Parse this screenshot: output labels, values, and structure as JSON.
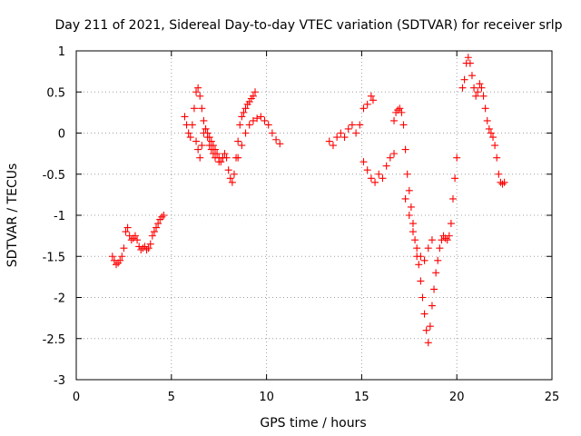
{
  "chart_data": {
    "type": "scatter",
    "title": "Day 211 of 2021, Sidereal Day-to-day VTEC variation (SDTVAR) for receiver srlp",
    "xlabel": "GPS time / hours",
    "ylabel": "SDTVAR / TECUs",
    "xlim": [
      0,
      25
    ],
    "ylim": [
      -3,
      1
    ],
    "xticks": [
      0,
      5,
      10,
      15,
      20,
      25
    ],
    "xtick_labels": [
      "0",
      "5",
      "10",
      "15",
      "20",
      "25"
    ],
    "yticks": [
      1,
      0.5,
      0,
      -0.5,
      -1,
      -1.5,
      -2,
      -2.5,
      -3
    ],
    "ytick_labels": [
      "1",
      "0.5",
      "0",
      "-0.5",
      "-1",
      "-1.5",
      "-2",
      "-2.5",
      "-3"
    ],
    "grid": true,
    "marker": "plus",
    "color": "#ff0000",
    "series": [
      {
        "name": "SDTVAR",
        "x": [
          1.9,
          2.0,
          2.1,
          2.2,
          2.3,
          2.4,
          2.5,
          2.6,
          2.7,
          2.8,
          2.9,
          3.0,
          3.1,
          3.2,
          3.3,
          3.4,
          3.5,
          3.6,
          3.7,
          3.8,
          3.9,
          4.0,
          4.1,
          4.2,
          4.3,
          4.4,
          4.5,
          4.6,
          5.7,
          5.8,
          5.9,
          6.0,
          6.1,
          6.2,
          6.3,
          6.4,
          6.5,
          6.6,
          6.7,
          6.8,
          6.9,
          7.0,
          7.1,
          7.2,
          7.3,
          7.4,
          7.5,
          7.6,
          7.7,
          7.8,
          7.9,
          8.0,
          8.1,
          8.2,
          8.3,
          8.4,
          8.5,
          8.6,
          8.7,
          8.8,
          8.9,
          9.0,
          9.1,
          9.2,
          9.3,
          9.4,
          8.5,
          8.7,
          8.9,
          9.1,
          9.3,
          9.5,
          9.7,
          9.9,
          10.1,
          10.3,
          10.5,
          10.7,
          6.3,
          6.4,
          6.5,
          6.6,
          6.7,
          6.8,
          6.9,
          7.0,
          7.1,
          7.2,
          7.3,
          7.5,
          7.7,
          13.3,
          13.5,
          13.7,
          13.9,
          14.1,
          14.3,
          14.5,
          14.7,
          14.9,
          15.1,
          15.3,
          15.5,
          15.6,
          15.1,
          15.3,
          15.5,
          15.7,
          15.9,
          16.1,
          16.3,
          16.5,
          16.7,
          16.7,
          16.8,
          16.9,
          17.0,
          17.1,
          17.2,
          17.3,
          17.4,
          17.5,
          17.6,
          17.7,
          17.8,
          17.9,
          18.0,
          18.1,
          18.2,
          18.3,
          18.4,
          18.5,
          18.6,
          18.7,
          18.8,
          18.9,
          19.0,
          19.1,
          19.2,
          19.3,
          19.4,
          19.5,
          19.6,
          19.7,
          19.8,
          19.9,
          20.0,
          17.3,
          17.5,
          17.7,
          17.9,
          18.1,
          18.3,
          18.5,
          18.7,
          20.3,
          20.4,
          20.5,
          20.6,
          20.7,
          20.8,
          20.9,
          21.0,
          21.1,
          21.2,
          21.3,
          21.4,
          21.5,
          21.6,
          21.7,
          21.8,
          21.9,
          22.0,
          22.1,
          22.2,
          22.3,
          22.4,
          22.5
        ],
        "y": [
          -1.5,
          -1.55,
          -1.6,
          -1.58,
          -1.55,
          -1.5,
          -1.4,
          -1.2,
          -1.15,
          -1.25,
          -1.3,
          -1.28,
          -1.25,
          -1.3,
          -1.38,
          -1.42,
          -1.4,
          -1.38,
          -1.42,
          -1.4,
          -1.35,
          -1.25,
          -1.2,
          -1.15,
          -1.1,
          -1.05,
          -1.02,
          -1.0,
          0.2,
          0.1,
          0.0,
          -0.05,
          0.1,
          0.3,
          0.5,
          0.55,
          0.45,
          0.3,
          0.15,
          0.05,
          0.0,
          -0.05,
          -0.1,
          -0.15,
          -0.2,
          -0.25,
          -0.3,
          -0.35,
          -0.3,
          -0.25,
          -0.3,
          -0.45,
          -0.55,
          -0.6,
          -0.5,
          -0.3,
          -0.1,
          0.1,
          0.2,
          0.25,
          0.3,
          0.35,
          0.38,
          0.42,
          0.45,
          0.5,
          -0.3,
          -0.15,
          0.0,
          0.1,
          0.15,
          0.18,
          0.2,
          0.15,
          0.1,
          0.0,
          -0.08,
          -0.13,
          -0.1,
          -0.2,
          -0.3,
          -0.15,
          0.0,
          0.05,
          -0.05,
          -0.15,
          -0.2,
          -0.25,
          -0.3,
          -0.35,
          -0.3,
          -0.1,
          -0.15,
          -0.05,
          0.0,
          -0.05,
          0.05,
          0.1,
          0.0,
          0.1,
          0.3,
          0.35,
          0.45,
          0.4,
          -0.35,
          -0.45,
          -0.55,
          -0.6,
          -0.5,
          -0.55,
          -0.4,
          -0.3,
          -0.25,
          0.15,
          0.25,
          0.28,
          0.3,
          0.25,
          0.1,
          -0.2,
          -0.5,
          -0.7,
          -0.9,
          -1.1,
          -1.3,
          -1.5,
          -1.6,
          -1.8,
          -2.0,
          -2.2,
          -2.4,
          -2.55,
          -2.35,
          -2.1,
          -1.9,
          -1.7,
          -1.55,
          -1.4,
          -1.3,
          -1.25,
          -1.28,
          -1.3,
          -1.25,
          -1.1,
          -0.8,
          -0.55,
          -0.3,
          -0.8,
          -1.0,
          -1.2,
          -1.4,
          -1.5,
          -1.55,
          -1.4,
          -1.3,
          0.55,
          0.65,
          0.85,
          0.92,
          0.85,
          0.7,
          0.55,
          0.45,
          0.5,
          0.6,
          0.55,
          0.45,
          0.3,
          0.15,
          0.05,
          0.0,
          -0.05,
          -0.15,
          -0.3,
          -0.5,
          -0.6,
          -0.62,
          -0.6
        ]
      }
    ]
  }
}
